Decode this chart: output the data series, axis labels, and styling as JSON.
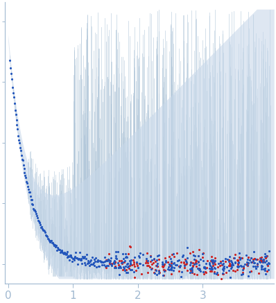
{
  "title": "",
  "xlabel": "",
  "ylabel": "",
  "xlim": [
    -0.05,
    4.1
  ],
  "ylim": [
    -0.08,
    1.08
  ],
  "x_ticks": [
    0,
    1,
    2,
    3
  ],
  "background_color": "#ffffff",
  "error_band_color": "#c8d8ea",
  "dot_color_blue": "#2255bb",
  "dot_color_red": "#cc2222",
  "dot_size": 5,
  "spike_color": "#aec4d8",
  "seed": 42
}
